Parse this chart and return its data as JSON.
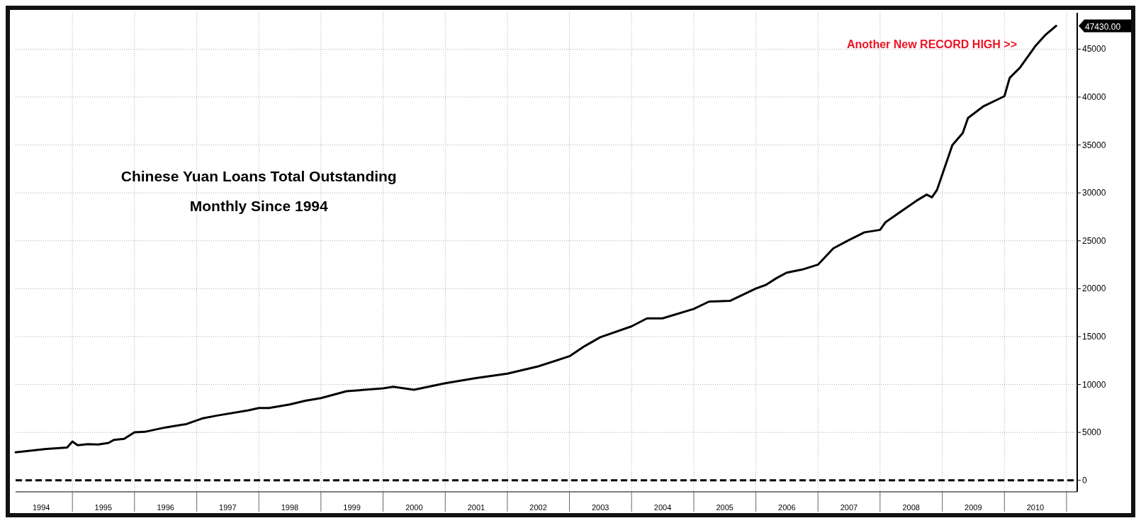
{
  "chart_data": {
    "type": "line",
    "title": "Chinese Yuan Loans Total Outstanding",
    "subtitle": "Monthly Since 1994",
    "x": [
      "1994-02",
      "1994-08",
      "1994-12",
      "1995-01",
      "1995-02",
      "1995-04",
      "1995-06",
      "1995-08",
      "1995-09",
      "1995-11",
      "1996-01",
      "1996-03",
      "1996-07",
      "1996-11",
      "1997-02",
      "1997-05",
      "1997-11",
      "1998-01",
      "1998-03",
      "1998-07",
      "1998-10",
      "1999-01",
      "1999-06",
      "2000-01",
      "2000-03",
      "2000-07",
      "2001-01",
      "2001-07",
      "2002-01",
      "2002-07",
      "2003-01",
      "2003-04",
      "2003-07",
      "2004-01",
      "2004-04",
      "2004-07",
      "2005-01",
      "2005-04",
      "2005-08",
      "2006-01",
      "2006-03",
      "2006-05",
      "2006-07",
      "2006-10",
      "2007-01",
      "2007-04",
      "2007-07",
      "2007-10",
      "2008-01",
      "2008-02",
      "2008-05",
      "2008-08",
      "2008-10",
      "2008-11",
      "2008-12",
      "2009-03",
      "2009-05",
      "2009-06",
      "2009-09",
      "2010-01",
      "2010-02",
      "2010-04",
      "2010-07",
      "2010-09",
      "2010-11"
    ],
    "series": [
      {
        "color": "#000000",
        "values": [
          2930,
          3280,
          3430,
          4050,
          3670,
          3780,
          3740,
          3900,
          4210,
          4330,
          5020,
          5060,
          5520,
          5870,
          6450,
          6760,
          7300,
          7540,
          7540,
          7920,
          8300,
          8580,
          9300,
          9600,
          9760,
          9450,
          10140,
          10670,
          11130,
          11890,
          12950,
          14010,
          14930,
          16070,
          16900,
          16900,
          17890,
          18660,
          18730,
          20020,
          20400,
          21090,
          21670,
          22000,
          22510,
          24210,
          25070,
          25880,
          26140,
          26920,
          28030,
          29170,
          29820,
          29540,
          30320,
          34980,
          36240,
          37820,
          39050,
          40090,
          42000,
          43040,
          45300,
          46520,
          47430
        ]
      }
    ],
    "xlim": [
      "1994-02-01",
      "2011-03-05"
    ],
    "ylim": [
      -1200,
      48800
    ],
    "xticks": [
      {
        "value": "1994-07-02",
        "label": "1994"
      },
      {
        "value": "1995-07-02",
        "label": "1995"
      },
      {
        "value": "1996-07-02",
        "label": "1996"
      },
      {
        "value": "1997-07-02",
        "label": "1997"
      },
      {
        "value": "1998-07-02",
        "label": "1998"
      },
      {
        "value": "1999-07-02",
        "label": "1999"
      },
      {
        "value": "2000-07-02",
        "label": "2000"
      },
      {
        "value": "2001-07-02",
        "label": "2001"
      },
      {
        "value": "2002-07-02",
        "label": "2002"
      },
      {
        "value": "2003-07-02",
        "label": "2003"
      },
      {
        "value": "2004-07-02",
        "label": "2004"
      },
      {
        "value": "2005-07-02",
        "label": "2005"
      },
      {
        "value": "2006-07-02",
        "label": "2006"
      },
      {
        "value": "2007-07-02",
        "label": "2007"
      },
      {
        "value": "2008-07-02",
        "label": "2008"
      },
      {
        "value": "2009-07-02",
        "label": "2009"
      },
      {
        "value": "2010-07-02",
        "label": "2010"
      }
    ],
    "yticks": [
      0,
      5000,
      10000,
      15000,
      20000,
      25000,
      30000,
      35000,
      40000,
      45000
    ],
    "ref_lines": [
      {
        "axis": "y",
        "value": 0,
        "line_style": "dashed",
        "color": "#000000"
      }
    ],
    "annotations": [
      "Another New RECORD HIGH  >>",
      "47430.00"
    ],
    "grid": true,
    "marker": "none",
    "line_style": "solid"
  }
}
